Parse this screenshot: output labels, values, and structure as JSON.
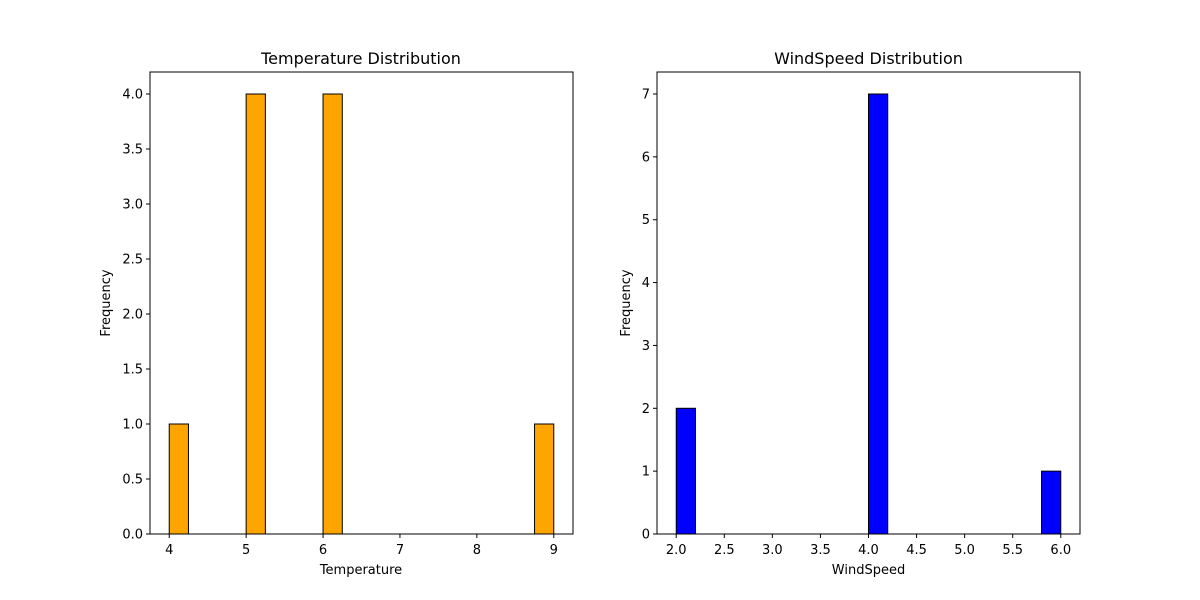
{
  "chart_data": [
    {
      "type": "bar",
      "title": "Temperature Distribution",
      "xlabel": "Temperature",
      "ylabel": "Frequency",
      "bar_color": "#ffa500",
      "edge_color": "#000000",
      "xlim": [
        3.75,
        9.25
      ],
      "ylim": [
        0,
        4.2
      ],
      "xticks": [
        4,
        5,
        6,
        7,
        8,
        9
      ],
      "xtick_labels": [
        "4",
        "5",
        "6",
        "7",
        "8",
        "9"
      ],
      "yticks": [
        0,
        0.5,
        1,
        1.5,
        2,
        2.5,
        3,
        3.5,
        4
      ],
      "ytick_labels": [
        "0.0",
        "0.5",
        "1.0",
        "1.5",
        "2.0",
        "2.5",
        "3.0",
        "3.5",
        "4.0"
      ],
      "bins": [
        {
          "start": 4.0,
          "end": 4.25,
          "count": 1
        },
        {
          "start": 5.0,
          "end": 5.25,
          "count": 4
        },
        {
          "start": 6.0,
          "end": 6.25,
          "count": 4
        },
        {
          "start": 8.75,
          "end": 9.0,
          "count": 1
        }
      ]
    },
    {
      "type": "bar",
      "title": "WindSpeed Distribution",
      "xlabel": "WindSpeed",
      "ylabel": "Frequency",
      "bar_color": "#0000ff",
      "edge_color": "#000000",
      "xlim": [
        1.8,
        6.2
      ],
      "ylim": [
        0,
        7.35
      ],
      "xticks": [
        2,
        2.5,
        3,
        3.5,
        4,
        4.5,
        5,
        5.5,
        6
      ],
      "xtick_labels": [
        "2.0",
        "2.5",
        "3.0",
        "3.5",
        "4.0",
        "4.5",
        "5.0",
        "5.5",
        "6.0"
      ],
      "yticks": [
        0,
        1,
        2,
        3,
        4,
        5,
        6,
        7
      ],
      "ytick_labels": [
        "0",
        "1",
        "2",
        "3",
        "4",
        "5",
        "6",
        "7"
      ],
      "bins": [
        {
          "start": 2.0,
          "end": 2.2,
          "count": 2
        },
        {
          "start": 4.0,
          "end": 4.2,
          "count": 7
        },
        {
          "start": 5.8,
          "end": 6.0,
          "count": 1
        }
      ]
    }
  ]
}
